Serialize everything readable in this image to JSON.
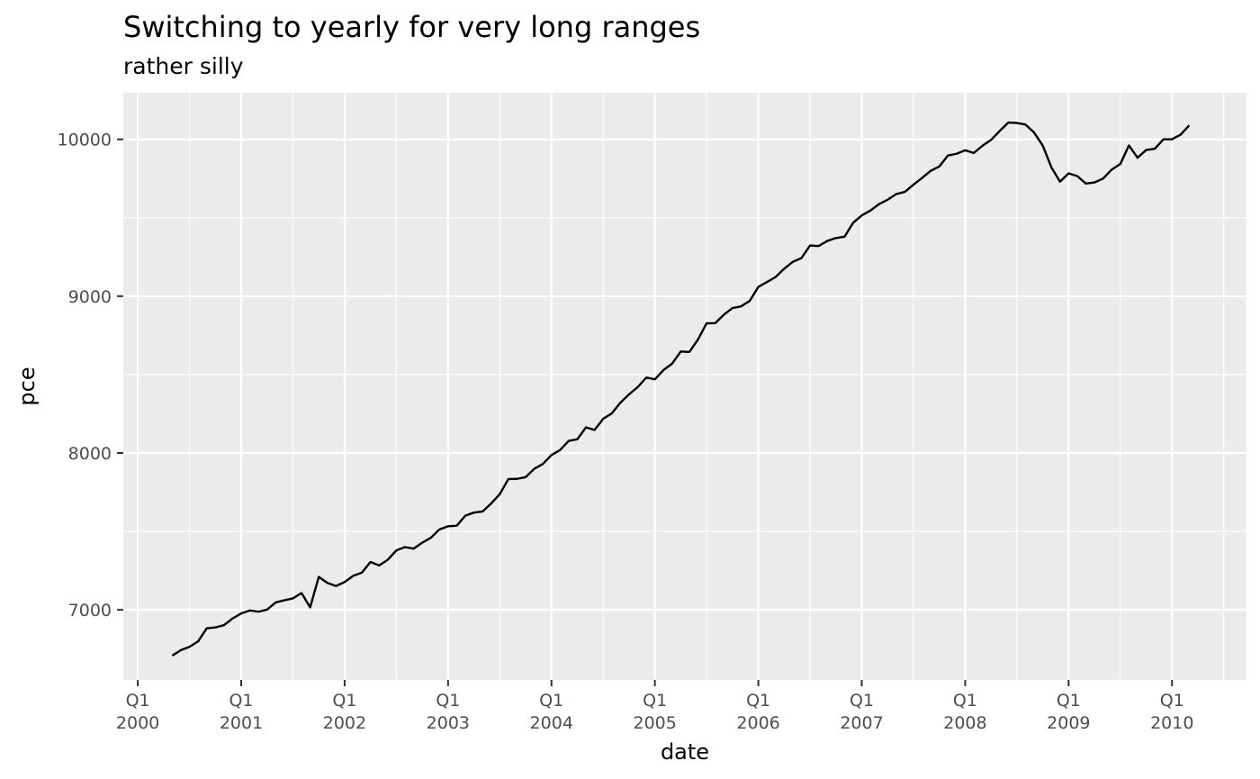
{
  "chart_data": {
    "type": "line",
    "title": "Switching to yearly for very long ranges",
    "subtitle": "rather silly",
    "xlabel": "date",
    "ylabel": "pce",
    "x_tick_labels": [
      [
        "Q1",
        "2000"
      ],
      [
        "Q1",
        "2001"
      ],
      [
        "Q1",
        "2002"
      ],
      [
        "Q1",
        "2003"
      ],
      [
        "Q1",
        "2004"
      ],
      [
        "Q1",
        "2005"
      ],
      [
        "Q1",
        "2006"
      ],
      [
        "Q1",
        "2007"
      ],
      [
        "Q1",
        "2008"
      ],
      [
        "Q1",
        "2009"
      ],
      [
        "Q1",
        "2010"
      ]
    ],
    "x_ticks": [
      2000,
      2001,
      2002,
      2003,
      2004,
      2005,
      2006,
      2007,
      2008,
      2009,
      2010
    ],
    "y_ticks": [
      7000,
      8000,
      9000,
      10000
    ],
    "xlim": [
      1999.86,
      2010.72
    ],
    "ylim": [
      6553,
      10297
    ],
    "grid": true,
    "background": "#ebebeb",
    "line_color": "#000000",
    "series": [
      {
        "start": "2000-05",
        "frequency": "monthly",
        "values": [
          6708,
          6743,
          6764,
          6799,
          6882,
          6888,
          6902,
          6945,
          6977,
          6996,
          6988,
          7001,
          7047,
          7061,
          7073,
          7107,
          7016,
          7210,
          7172,
          7152,
          7177,
          7217,
          7237,
          7305,
          7283,
          7319,
          7379,
          7400,
          7390,
          7428,
          7459,
          7513,
          7533,
          7536,
          7600,
          7620,
          7627,
          7678,
          7738,
          7834,
          7835,
          7846,
          7899,
          7930,
          7987,
          8019,
          8077,
          8088,
          8163,
          8147,
          8218,
          8253,
          8321,
          8374,
          8420,
          8481,
          8470,
          8529,
          8570,
          8647,
          8644,
          8724,
          8827,
          8828,
          8882,
          8924,
          8935,
          8970,
          9059,
          9090,
          9122,
          9175,
          9219,
          9243,
          9323,
          9320,
          9352,
          9371,
          9379,
          9468,
          9515,
          9546,
          9587,
          9615,
          9651,
          9665,
          9711,
          9754,
          9799,
          9827,
          9897,
          9908,
          9930,
          9913,
          9959,
          9996,
          10053,
          10107,
          10104,
          10094,
          10043,
          9960,
          9822,
          9730,
          9783,
          9766,
          9718,
          9725,
          9750,
          9807,
          9843,
          9961,
          9883,
          9932,
          9940,
          10000,
          10001,
          10030,
          10089
        ]
      }
    ]
  }
}
